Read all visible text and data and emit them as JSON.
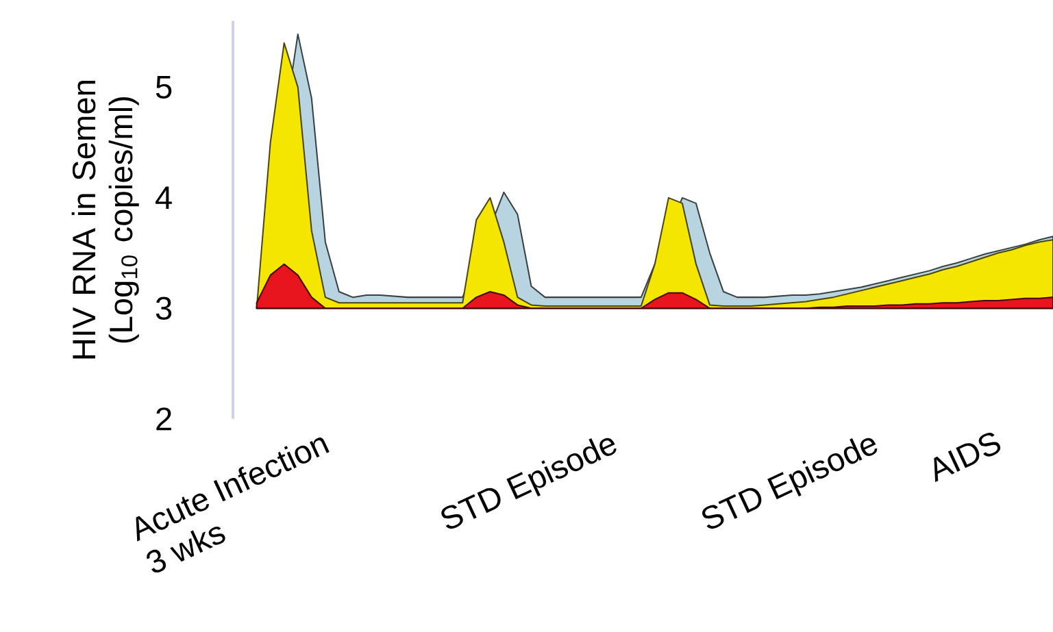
{
  "chart_data": {
    "type": "area",
    "ylabel": "HIV RNA in Semen (Log$_{10}$ copies/ml)",
    "ylim": [
      2,
      5.6
    ],
    "yticks": [
      2,
      3,
      4,
      5
    ],
    "categories": [
      null,
      null,
      null,
      null,
      null,
      "Acute Infection 3 wks",
      null,
      null,
      null,
      null,
      null,
      null,
      null,
      null,
      null,
      null,
      null,
      null,
      null,
      null,
      null,
      null,
      null,
      null,
      null,
      null,
      "STD Episode",
      null,
      null,
      null,
      null,
      null,
      null,
      null,
      null,
      null,
      null,
      null,
      null,
      null,
      null,
      null,
      null,
      null,
      null,
      "STD Episode",
      null,
      null,
      null,
      null,
      null,
      null,
      null,
      null,
      "AIDS",
      null,
      null,
      null,
      null
    ],
    "series": [
      {
        "color": "#b8d4e0",
        "values": [
          3.0,
          null,
          null,
          5.48,
          4.9,
          3.6,
          3.15,
          3.1,
          3.12,
          3.12,
          3.11,
          3.1,
          3.1,
          3.1,
          3.1,
          3.1,
          null,
          null,
          4.05,
          3.85,
          3.2,
          3.1,
          3.1,
          3.1,
          3.1,
          3.1,
          3.1,
          3.1,
          3.1,
          null,
          null,
          4.0,
          3.95,
          3.5,
          3.15,
          3.1,
          3.1,
          3.1,
          3.11,
          3.12,
          3.12,
          3.13,
          3.15,
          3.17,
          3.19,
          3.22,
          3.25,
          3.28,
          3.31,
          3.34,
          3.38,
          3.41,
          3.45,
          3.49,
          3.52,
          3.55,
          3.58,
          3.62,
          3.65
        ]
      },
      {
        "color": "#f5e600",
        "values": [
          3.0,
          4.5,
          5.4,
          5.0,
          3.7,
          3.1,
          3.05,
          3.05,
          3.05,
          3.05,
          3.05,
          3.05,
          3.05,
          3.05,
          3.05,
          3.05,
          3.8,
          4.0,
          3.6,
          3.1,
          3.03,
          3.02,
          3.02,
          3.02,
          3.02,
          3.02,
          3.02,
          3.02,
          3.02,
          3.4,
          4.0,
          3.95,
          3.4,
          3.03,
          3.02,
          3.02,
          3.02,
          3.03,
          3.04,
          3.05,
          3.06,
          3.08,
          3.1,
          3.13,
          3.16,
          3.19,
          3.22,
          3.25,
          3.28,
          3.31,
          3.35,
          3.38,
          3.42,
          3.46,
          3.5,
          3.53,
          3.57,
          3.6,
          3.62
        ]
      },
      {
        "color": "#e8141e",
        "values": [
          3.05,
          3.3,
          3.4,
          3.3,
          3.1,
          3.0,
          3.0,
          3.0,
          3.0,
          3.0,
          3.0,
          3.0,
          3.0,
          3.0,
          3.0,
          3.0,
          3.1,
          3.15,
          3.12,
          3.03,
          3.0,
          3.0,
          3.0,
          3.0,
          3.0,
          3.0,
          3.0,
          3.0,
          3.0,
          3.08,
          3.14,
          3.14,
          3.08,
          3.0,
          3.0,
          3.0,
          3.0,
          3.0,
          3.0,
          3.0,
          3.0,
          3.01,
          3.01,
          3.02,
          3.02,
          3.02,
          3.03,
          3.03,
          3.04,
          3.04,
          3.05,
          3.05,
          3.06,
          3.07,
          3.07,
          3.08,
          3.09,
          3.09,
          3.1
        ]
      }
    ]
  }
}
